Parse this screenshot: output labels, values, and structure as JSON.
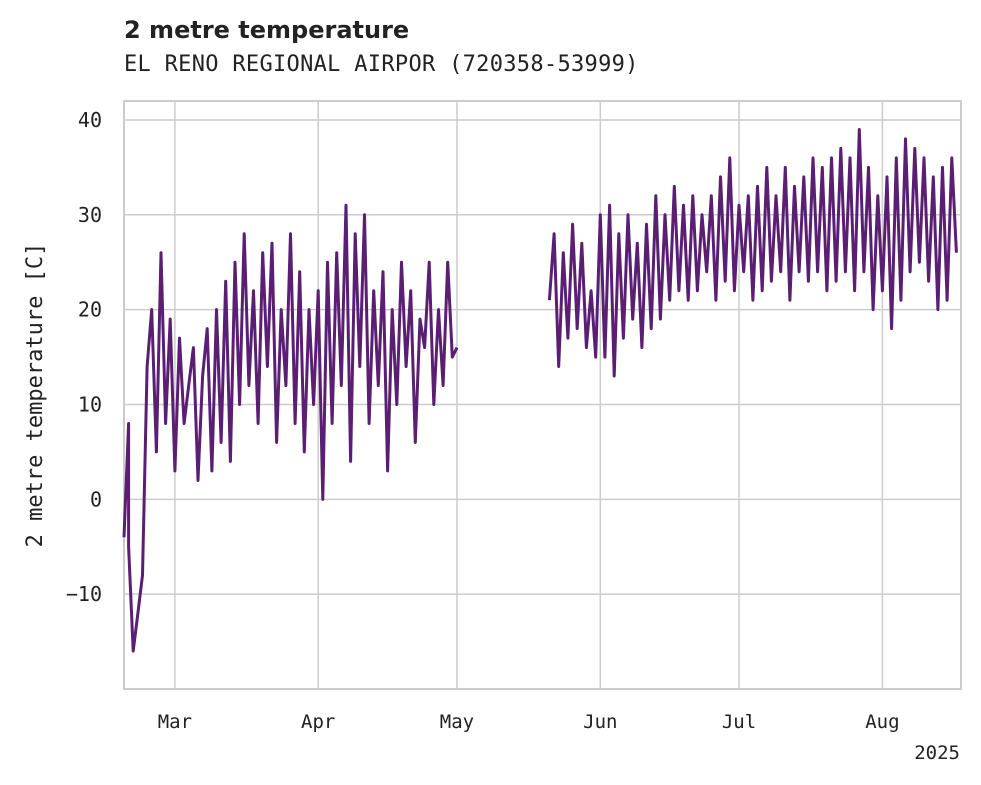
{
  "title": "2 metre temperature",
  "subtitle": "EL RENO REGIONAL AIRPOR (720358-53999)",
  "chart_data": {
    "type": "line",
    "title": "2 metre temperature",
    "subtitle": "EL RENO REGIONAL AIRPOR (720358-53999)",
    "xlabel": "",
    "ylabel": "2 metre temperature [C]",
    "x_ticks": [
      {
        "label": "Mar",
        "date": "2025-03-01"
      },
      {
        "label": "Apr",
        "date": "2025-04-01"
      },
      {
        "label": "May",
        "date": "2025-05-01"
      },
      {
        "label": "Jun",
        "date": "2025-06-01"
      },
      {
        "label": "Jul",
        "date": "2025-07-01"
      },
      {
        "label": "Aug",
        "date": "2025-08-01"
      }
    ],
    "x_year_label": "2025",
    "xlim": [
      "2025-02-18",
      "2025-08-18"
    ],
    "y_ticks": [
      -10,
      0,
      10,
      20,
      30,
      40
    ],
    "ylim": [
      -20,
      42
    ],
    "grid": true,
    "line_color": "#5a1f73",
    "series": [
      {
        "segments": [
          {
            "x": [
              "2025-02-18",
              "2025-02-19",
              "2025-02-19",
              "2025-02-20",
              "2025-02-21",
              "2025-02-22",
              "2025-02-23",
              "2025-02-24",
              "2025-02-25",
              "2025-02-26",
              "2025-02-27",
              "2025-02-28",
              "2025-03-01",
              "2025-03-02",
              "2025-03-03",
              "2025-03-04",
              "2025-03-05",
              "2025-03-06",
              "2025-03-07",
              "2025-03-08",
              "2025-03-09",
              "2025-03-10",
              "2025-03-11",
              "2025-03-12",
              "2025-03-13",
              "2025-03-14",
              "2025-03-15",
              "2025-03-16",
              "2025-03-17",
              "2025-03-18",
              "2025-03-19",
              "2025-03-20",
              "2025-03-21",
              "2025-03-22",
              "2025-03-23",
              "2025-03-24",
              "2025-03-25",
              "2025-03-26",
              "2025-03-27",
              "2025-03-28",
              "2025-03-29",
              "2025-03-30",
              "2025-03-31",
              "2025-04-01",
              "2025-04-02",
              "2025-04-03",
              "2025-04-04",
              "2025-04-05",
              "2025-04-06",
              "2025-04-07",
              "2025-04-08",
              "2025-04-09",
              "2025-04-10",
              "2025-04-11",
              "2025-04-12",
              "2025-04-13",
              "2025-04-14",
              "2025-04-15",
              "2025-04-16",
              "2025-04-17",
              "2025-04-18",
              "2025-04-19",
              "2025-04-20",
              "2025-04-21",
              "2025-04-22",
              "2025-04-23",
              "2025-04-24",
              "2025-04-25",
              "2025-04-26",
              "2025-04-27",
              "2025-04-28",
              "2025-04-29",
              "2025-04-30",
              "2025-05-01"
            ],
            "y": [
              -4,
              8,
              -5,
              -16,
              -12,
              -8,
              14,
              20,
              5,
              26,
              8,
              19,
              3,
              17,
              8,
              12,
              16,
              2,
              13,
              18,
              3,
              20,
              6,
              23,
              4,
              25,
              10,
              28,
              12,
              22,
              8,
              26,
              14,
              27,
              6,
              20,
              12,
              28,
              8,
              24,
              5,
              20,
              10,
              22,
              0,
              25,
              8,
              26,
              12,
              31,
              4,
              28,
              14,
              30,
              8,
              22,
              12,
              24,
              3,
              20,
              10,
              25,
              14,
              22,
              6,
              19,
              16,
              25,
              10,
              20,
              12,
              25,
              15,
              16
            ]
          },
          {
            "x": [
              "2025-05-21",
              "2025-05-22",
              "2025-05-23",
              "2025-05-24",
              "2025-05-25",
              "2025-05-26",
              "2025-05-27",
              "2025-05-28",
              "2025-05-29",
              "2025-05-30",
              "2025-05-31",
              "2025-06-01",
              "2025-06-02",
              "2025-06-03",
              "2025-06-04",
              "2025-06-05",
              "2025-06-06",
              "2025-06-07",
              "2025-06-08",
              "2025-06-09",
              "2025-06-10",
              "2025-06-11",
              "2025-06-12",
              "2025-06-13",
              "2025-06-14",
              "2025-06-15",
              "2025-06-16",
              "2025-06-17",
              "2025-06-18",
              "2025-06-19",
              "2025-06-20",
              "2025-06-21",
              "2025-06-22",
              "2025-06-23",
              "2025-06-24",
              "2025-06-25",
              "2025-06-26",
              "2025-06-27",
              "2025-06-28",
              "2025-06-29",
              "2025-06-30",
              "2025-07-01",
              "2025-07-02",
              "2025-07-03",
              "2025-07-04",
              "2025-07-05",
              "2025-07-06",
              "2025-07-07",
              "2025-07-08",
              "2025-07-09",
              "2025-07-10",
              "2025-07-11",
              "2025-07-12",
              "2025-07-13",
              "2025-07-14",
              "2025-07-15",
              "2025-07-16",
              "2025-07-17",
              "2025-07-18",
              "2025-07-19",
              "2025-07-20",
              "2025-07-21",
              "2025-07-22",
              "2025-07-23",
              "2025-07-24",
              "2025-07-25",
              "2025-07-26",
              "2025-07-27",
              "2025-07-28",
              "2025-07-29",
              "2025-07-30",
              "2025-07-31",
              "2025-08-01",
              "2025-08-02",
              "2025-08-03",
              "2025-08-04",
              "2025-08-05",
              "2025-08-06",
              "2025-08-07",
              "2025-08-08",
              "2025-08-09",
              "2025-08-10",
              "2025-08-11",
              "2025-08-12",
              "2025-08-13",
              "2025-08-14",
              "2025-08-15",
              "2025-08-16",
              "2025-08-17"
            ],
            "y": [
              21,
              28,
              14,
              26,
              17,
              29,
              18,
              27,
              16,
              22,
              15,
              30,
              15,
              31,
              13,
              28,
              17,
              30,
              19,
              27,
              16,
              29,
              18,
              32,
              19,
              30,
              21,
              33,
              22,
              31,
              21,
              32,
              22,
              30,
              24,
              32,
              21,
              34,
              23,
              36,
              22,
              31,
              24,
              32,
              21,
              33,
              22,
              35,
              23,
              32,
              24,
              35,
              21,
              33,
              24,
              34,
              23,
              36,
              24,
              35,
              22,
              36,
              23,
              37,
              24,
              36,
              22,
              39,
              24,
              35,
              20,
              32,
              22,
              34,
              18,
              36,
              21,
              38,
              24,
              37,
              25,
              36,
              23,
              34,
              20,
              35,
              21,
              36,
              26
            ]
          }
        ]
      }
    ]
  }
}
